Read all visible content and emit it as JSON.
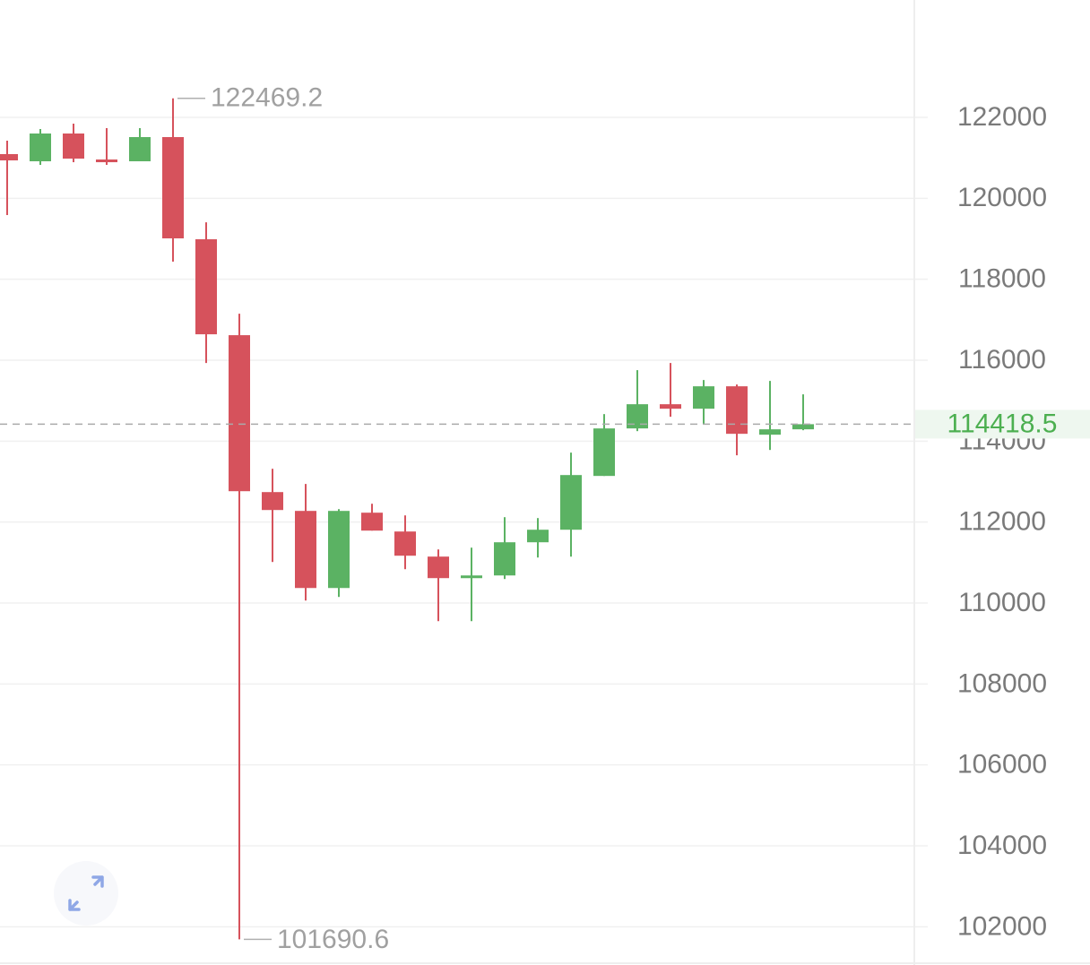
{
  "chart_data": {
    "type": "candlestick",
    "open": [
      121092,
      120915,
      121601,
      120959,
      120915,
      121513,
      118988,
      116618,
      112741,
      112276,
      110371,
      112232,
      111767,
      111147,
      110615,
      110681,
      111501,
      111811,
      113140,
      114314,
      114912,
      114801,
      115355,
      114159,
      114292
    ],
    "high": [
      121424,
      121712,
      121845,
      121734,
      121734,
      122469.2,
      119408,
      117149,
      113317,
      112941,
      112320,
      112453,
      112165,
      111324,
      111368,
      112121,
      112099,
      113716,
      114668,
      115754,
      115931,
      115510,
      115399,
      115488,
      115156
    ],
    "low": [
      119586,
      120826,
      120892,
      120826,
      120915,
      118434,
      115931,
      101690.6,
      111014,
      110061,
      110150,
      111789,
      110836,
      109552,
      109552,
      110593,
      111124,
      111146,
      113140,
      114247,
      114602,
      114425,
      113650,
      113782,
      114270
    ],
    "close": [
      120937,
      121601,
      120981,
      120892,
      121513,
      119010,
      116640,
      112763,
      112298,
      110371,
      112276,
      111789,
      111169,
      110615,
      110681,
      111501,
      111811,
      113162,
      114314,
      114912,
      114801,
      115355,
      114181,
      114292,
      114418.5
    ],
    "up_color": "#5bb263",
    "down_color": "#d6525c",
    "ylim": [
      101100,
      124900
    ],
    "yticks": [
      102000,
      104000,
      106000,
      108000,
      110000,
      112000,
      114000,
      116000,
      118000,
      120000,
      122000
    ],
    "grid": true
  }
}
